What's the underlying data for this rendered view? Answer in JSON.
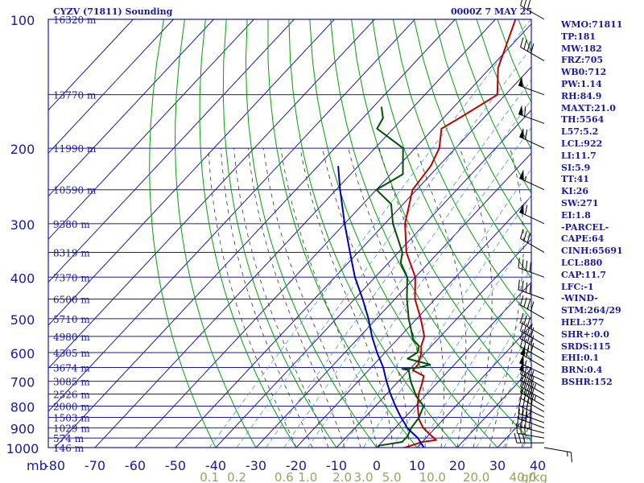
{
  "header": {
    "station": "CYZV (71811) Sounding",
    "time": "0000Z  7 MAY 25"
  },
  "indices": [
    "WMO:71811",
    "TP:181",
    "MW:182",
    "FRZ:705",
    "WB0:712",
    "PW:1.14",
    "RH:84.9",
    "MAXT:21.0",
    "TH:5564",
    "L57:5.2",
    "LCL:922",
    "LI:11.7",
    "SI:5.9",
    "TT:41",
    "KI:26",
    "SW:271",
    "EI:1.8",
    "-PARCEL-",
    "CAPE:64",
    "CINH:65691",
    "LCL:880",
    "CAP:11.7",
    "LFC:-1",
    "-WIND-",
    "STM:264/29",
    "HEL:377",
    "SHR+:0.0",
    "SRDS:115",
    "EHI:0.1",
    "BRN:0.4",
    "BSHR:152"
  ],
  "colors": {
    "frame": "#1a1aa0",
    "isobar": "#1a1aa0",
    "isotherm": "#1a1aa0",
    "dry_adiabat": "#00a000",
    "moist_adiabat": "#333333",
    "mixing_ratio": "#4a9ad8",
    "temperature": "#c00000",
    "dewpoint": "#005000",
    "parcel": "#0000b0",
    "wind_barb": "#000000"
  },
  "chart_data": {
    "type": "skew-t",
    "pressure_axis_label": "mb",
    "pressure_levels": [
      100,
      150,
      200,
      250,
      300,
      350,
      400,
      450,
      500,
      550,
      600,
      650,
      700,
      750,
      800,
      850,
      900,
      950,
      1000
    ],
    "pressure_tick_labels": [
      "100",
      "200",
      "300",
      "400",
      "500",
      "600",
      "700",
      "800",
      "900",
      "1000"
    ],
    "height_labels": [
      {
        "p": 100,
        "label": "16320 m"
      },
      {
        "p": 150,
        "label": "13770 m"
      },
      {
        "p": 200,
        "label": "11990 m"
      },
      {
        "p": 250,
        "label": "10590 m"
      },
      {
        "p": 300,
        "label": "9380 m"
      },
      {
        "p": 350,
        "label": "8319 m"
      },
      {
        "p": 400,
        "label": "7370 m"
      },
      {
        "p": 450,
        "label": "6500 m"
      },
      {
        "p": 500,
        "label": "5710 m"
      },
      {
        "p": 550,
        "label": "4980 m"
      },
      {
        "p": 600,
        "label": "4305 m"
      },
      {
        "p": 650,
        "label": "3674 m"
      },
      {
        "p": 700,
        "label": "3085 m"
      },
      {
        "p": 750,
        "label": "2526 m"
      },
      {
        "p": 800,
        "label": "2000 m"
      },
      {
        "p": 850,
        "label": "1503 m"
      },
      {
        "p": 900,
        "label": "1029 m"
      },
      {
        "p": 950,
        "label": "574 m"
      },
      {
        "p": 1000,
        "label": "146 m"
      }
    ],
    "temperature_ticks": [
      -80,
      -70,
      -60,
      -50,
      -40,
      -30,
      -20,
      -10,
      0,
      10,
      20,
      30,
      40
    ],
    "temperature_tick_labels": [
      "-80",
      "-70",
      "-60",
      "-50",
      "-40",
      "-30",
      "-20",
      "-10",
      "0",
      "10",
      "20",
      "30",
      "40"
    ],
    "xlim": [
      -80,
      40
    ],
    "mixing_ratio_labels": [
      {
        "w": 0.1,
        "label": "0.1"
      },
      {
        "w": 0.2,
        "label": "0.2"
      },
      {
        "w": 0.6,
        "label": "0.6"
      },
      {
        "w": 1.0,
        "label": "1.0"
      },
      {
        "w": 2.0,
        "label": "2.0"
      },
      {
        "w": 3.0,
        "label": "3.0"
      },
      {
        "w": 5.0,
        "label": "5.0"
      },
      {
        "w": 10.0,
        "label": "10.0"
      },
      {
        "w": 20.0,
        "label": "20.0"
      },
      {
        "w": 40.0,
        "label": "40.0"
      }
    ],
    "mixing_ratio_unit": "g/kg",
    "series": [
      {
        "name": "",
        "key": "temperature",
        "points": [
          [
            1004,
            6.0
          ],
          [
            1000,
            7.0
          ],
          [
            970,
            10.0
          ],
          [
            960,
            13.0
          ],
          [
            940,
            11.0
          ],
          [
            900,
            7.0
          ],
          [
            860,
            4.0
          ],
          [
            800,
            0.5
          ],
          [
            750,
            -2.0
          ],
          [
            700,
            -4.0
          ],
          [
            680,
            -5.0
          ],
          [
            660,
            -9.0
          ],
          [
            640,
            -9.0
          ],
          [
            600,
            -11.0
          ],
          [
            580,
            -12.5
          ],
          [
            550,
            -14.0
          ],
          [
            500,
            -19.0
          ],
          [
            450,
            -25.0
          ],
          [
            400,
            -30.0
          ],
          [
            350,
            -38.0
          ],
          [
            300,
            -45.0
          ],
          [
            250,
            -51.0
          ],
          [
            220,
            -52.0
          ],
          [
            200,
            -54.0
          ],
          [
            180,
            -58.0
          ],
          [
            170,
            -56.0
          ],
          [
            150,
            -52.0
          ],
          [
            130,
            -58.0
          ],
          [
            100,
            -65.0
          ]
        ]
      },
      {
        "name": "",
        "key": "dewpoint",
        "points": [
          [
            1004,
            1.0
          ],
          [
            1000,
            0.5
          ],
          [
            990,
            0.0
          ],
          [
            980,
            2.5
          ],
          [
            970,
            5.0
          ],
          [
            940,
            5.0
          ],
          [
            900,
            4.0
          ],
          [
            850,
            3.5
          ],
          [
            800,
            2.0
          ],
          [
            760,
            -2.0
          ],
          [
            700,
            -7.0
          ],
          [
            660,
            -10.0
          ],
          [
            655,
            -12.0
          ],
          [
            650,
            -8.0
          ],
          [
            640,
            -6.0
          ],
          [
            620,
            -13.0
          ],
          [
            600,
            -12.0
          ],
          [
            580,
            -13.0
          ],
          [
            560,
            -16.0
          ],
          [
            500,
            -22.0
          ],
          [
            450,
            -27.0
          ],
          [
            400,
            -32.0
          ],
          [
            370,
            -37.0
          ],
          [
            350,
            -39.0
          ],
          [
            300,
            -48.0
          ],
          [
            270,
            -53.0
          ],
          [
            250,
            -60.0
          ],
          [
            230,
            -57.0
          ],
          [
            200,
            -63.0
          ],
          [
            180,
            -74.0
          ],
          [
            170,
            -75.0
          ],
          [
            160,
            -78.0
          ]
        ]
      },
      {
        "name": "",
        "key": "parcel",
        "points": [
          [
            1004,
            12.0
          ],
          [
            950,
            8.0
          ],
          [
            900,
            3.0
          ],
          [
            880,
            1.5
          ],
          [
            850,
            -1.0
          ],
          [
            800,
            -5.0
          ],
          [
            750,
            -9.0
          ],
          [
            700,
            -13.0
          ],
          [
            650,
            -17.0
          ],
          [
            600,
            -22.0
          ],
          [
            550,
            -27.0
          ],
          [
            500,
            -32.0
          ],
          [
            450,
            -38.0
          ],
          [
            400,
            -45.0
          ],
          [
            350,
            -52.0
          ],
          [
            300,
            -60.0
          ],
          [
            250,
            -69.0
          ],
          [
            220,
            -75.0
          ]
        ]
      }
    ],
    "wind_barbs": [
      {
        "p": 1000,
        "dir": 100,
        "spd": 15
      },
      {
        "p": 975,
        "dir": 270,
        "spd": 30
      },
      {
        "p": 950,
        "dir": 280,
        "spd": 30
      },
      {
        "p": 925,
        "dir": 285,
        "spd": 35
      },
      {
        "p": 900,
        "dir": 290,
        "spd": 35
      },
      {
        "p": 875,
        "dir": 290,
        "spd": 40
      },
      {
        "p": 850,
        "dir": 295,
        "spd": 40
      },
      {
        "p": 825,
        "dir": 300,
        "spd": 40
      },
      {
        "p": 800,
        "dir": 300,
        "spd": 45
      },
      {
        "p": 775,
        "dir": 300,
        "spd": 40
      },
      {
        "p": 750,
        "dir": 300,
        "spd": 45
      },
      {
        "p": 725,
        "dir": 300,
        "spd": 40
      },
      {
        "p": 700,
        "dir": 295,
        "spd": 50
      },
      {
        "p": 675,
        "dir": 295,
        "spd": 55
      },
      {
        "p": 650,
        "dir": 300,
        "spd": 60
      },
      {
        "p": 625,
        "dir": 300,
        "spd": 40
      },
      {
        "p": 600,
        "dir": 300,
        "spd": 40
      },
      {
        "p": 575,
        "dir": 300,
        "spd": 40
      },
      {
        "p": 550,
        "dir": 300,
        "spd": 35
      },
      {
        "p": 500,
        "dir": 300,
        "spd": 40
      },
      {
        "p": 450,
        "dir": 290,
        "spd": 40
      },
      {
        "p": 400,
        "dir": 290,
        "spd": 40
      },
      {
        "p": 350,
        "dir": 300,
        "spd": 30
      },
      {
        "p": 300,
        "dir": 295,
        "spd": 60
      },
      {
        "p": 250,
        "dir": 295,
        "spd": 55
      },
      {
        "p": 200,
        "dir": 295,
        "spd": 60
      },
      {
        "p": 175,
        "dir": 290,
        "spd": 60
      },
      {
        "p": 150,
        "dir": 290,
        "spd": 50
      },
      {
        "p": 125,
        "dir": 300,
        "spd": 40
      },
      {
        "p": 100,
        "dir": 300,
        "spd": 30
      }
    ]
  }
}
